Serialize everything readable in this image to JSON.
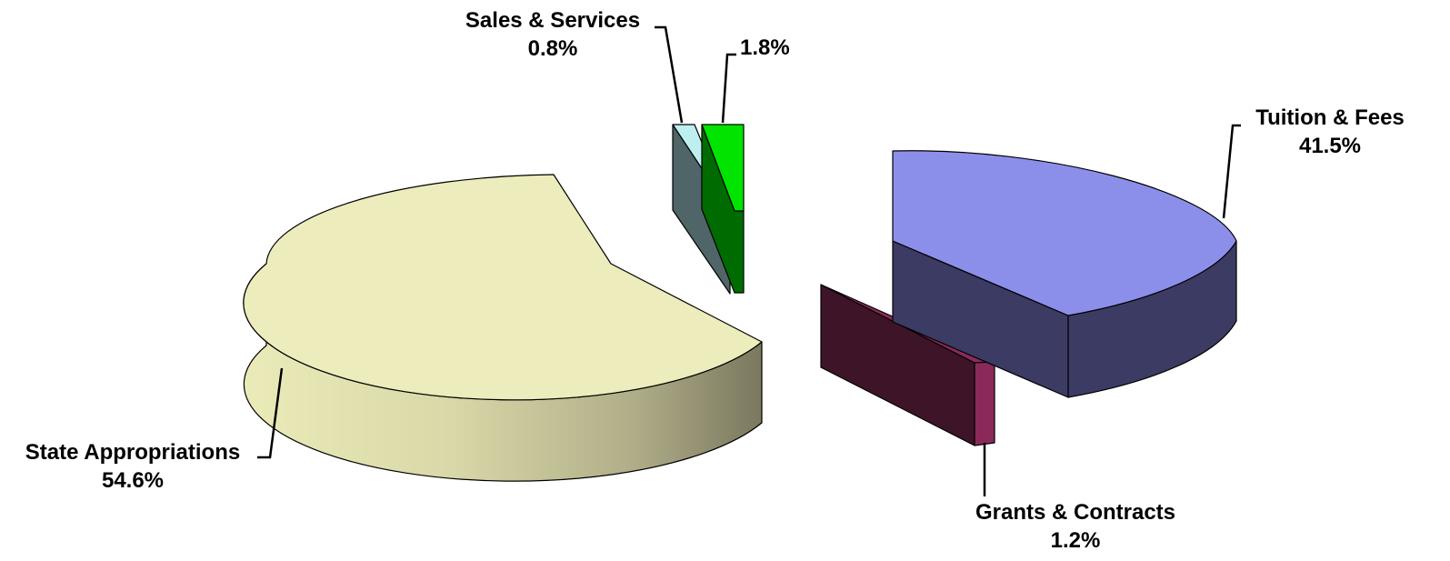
{
  "chart_data": {
    "type": "pie",
    "style": "3d-exploded",
    "categories": [
      "Tuition & Fees",
      "Grants & Contracts",
      "State Appropriations",
      "Sales & Services",
      ""
    ],
    "values": [
      41.5,
      1.2,
      54.6,
      0.8,
      1.8
    ],
    "value_labels": [
      "41.5%",
      "1.2%",
      "54.6%",
      "0.8%",
      "1.8%"
    ],
    "colors": [
      "#8c8fea",
      "#8b2a5a",
      "#ececbc",
      "#bdeff0",
      "#00e400"
    ],
    "side_colors": [
      "#3b3b63",
      "#3e1428",
      "#b5b38c",
      "#4f6568",
      "#006b00"
    ],
    "title": "",
    "legend": "none",
    "grid": false
  }
}
